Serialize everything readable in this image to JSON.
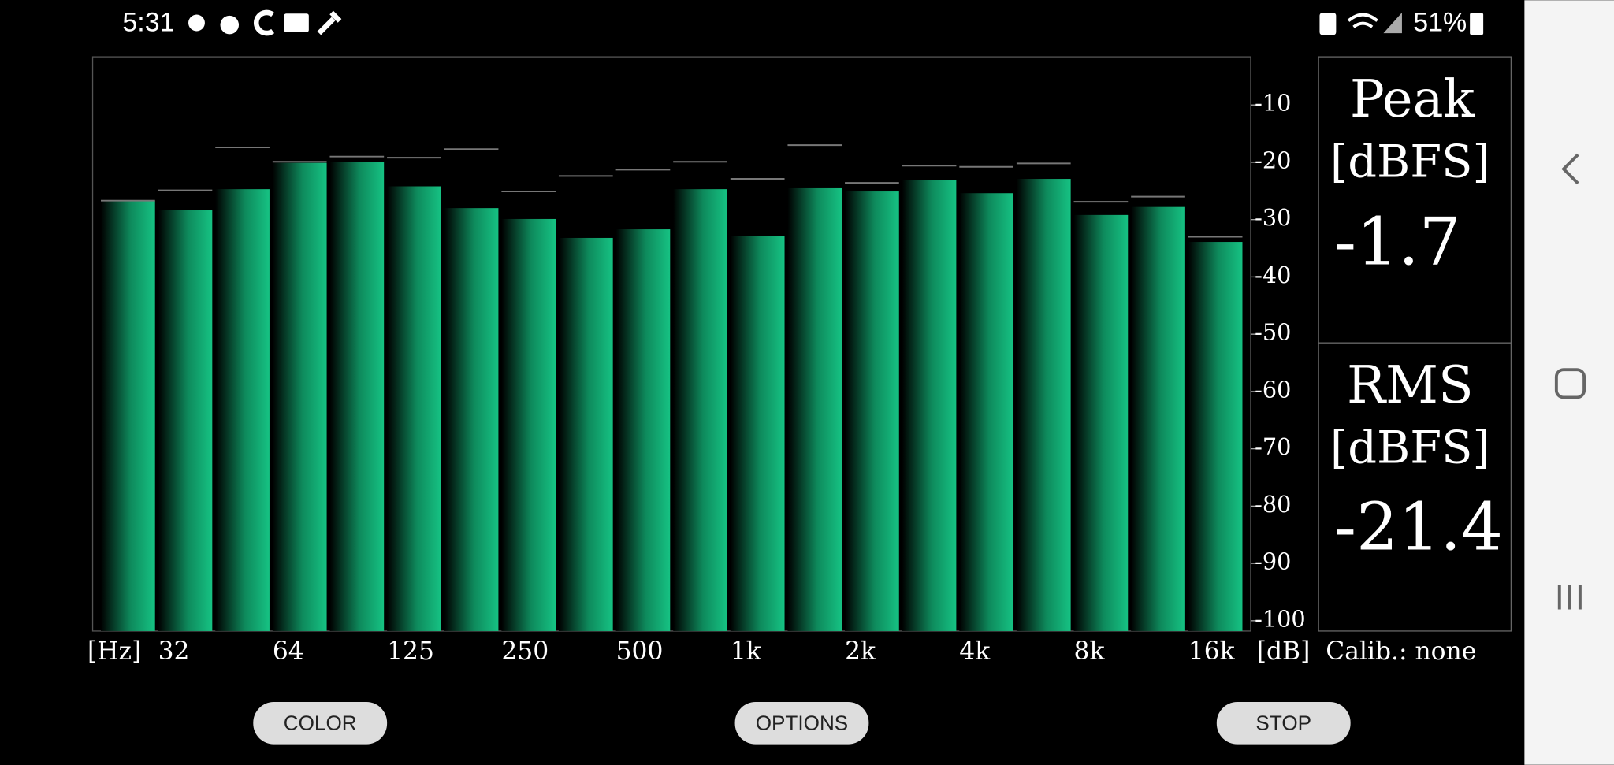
{
  "status_bar": {
    "time": "5:31",
    "battery": "51%"
  },
  "chart_data": {
    "type": "bar",
    "categories": [
      null,
      "32",
      null,
      "64",
      null,
      "125",
      null,
      "250",
      null,
      "500",
      null,
      "1k",
      null,
      "2k",
      null,
      "4k",
      null,
      "8k",
      null,
      "16k"
    ],
    "series": [
      {
        "color": "#14b57a",
        "values": [
          -26.7,
          -28.3,
          -24.7,
          -20.1,
          -19.9,
          -24.2,
          -28.0,
          -29.9,
          -33.2,
          -31.7,
          -24.7,
          -32.8,
          -24.4,
          -25.1,
          -23.1,
          -25.4,
          -22.9,
          -29.2,
          -27.8,
          -33.9
        ]
      },
      {
        "color": "#777777",
        "values": [
          -26.7,
          -24.9,
          -17.4,
          -19.9,
          -19.0,
          -19.2,
          -17.7,
          -25.1,
          -22.4,
          -21.3,
          -19.9,
          -22.9,
          -17.0,
          -23.6,
          -20.6,
          -20.8,
          -20.2,
          -26.9,
          -26.0,
          -33.0
        ]
      }
    ],
    "x_label": "[Hz]",
    "y_label": "[dB]",
    "ylim": [
      -101.8,
      -1.6
    ],
    "yticks": [
      -10,
      -20,
      -30,
      -40,
      -50,
      -60,
      -70,
      -80,
      -90,
      -100
    ]
  },
  "panel": {
    "peak_title": "Peak",
    "peak_unit": "[dBFS]",
    "peak_value": -1.7,
    "rms_title": "RMS",
    "rms_unit": "[dBFS]",
    "rms_value": -21.4,
    "calibration": "Calib.: none"
  },
  "buttons": [
    "COLOR",
    "OPTIONS",
    "STOP"
  ]
}
